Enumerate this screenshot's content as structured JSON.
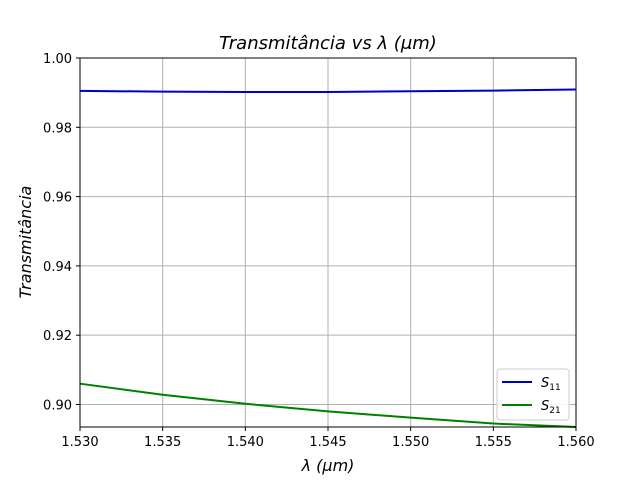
{
  "chart_data": {
    "type": "line",
    "title": "Transmitância vs λ (μm)",
    "xlabel": "λ (μm)",
    "ylabel": "Transmitância",
    "xlim": [
      1.53,
      1.56
    ],
    "ylim": [
      0.8935,
      1.0
    ],
    "xticks": [
      1.53,
      1.535,
      1.54,
      1.545,
      1.55,
      1.555,
      1.56
    ],
    "xtick_labels": [
      "1.530",
      "1.535",
      "1.540",
      "1.545",
      "1.550",
      "1.555",
      "1.560"
    ],
    "yticks": [
      0.9,
      0.92,
      0.94,
      0.96,
      0.98,
      1.0
    ],
    "ytick_labels": [
      "0.90",
      "0.92",
      "0.94",
      "0.96",
      "0.98",
      "1.00"
    ],
    "grid": true,
    "legend_position": "bottom-right",
    "series": [
      {
        "name": "S11",
        "name_main": "S",
        "name_sub": "11",
        "color": "#0000cc",
        "x": [
          1.53,
          1.535,
          1.54,
          1.545,
          1.55,
          1.555,
          1.56
        ],
        "y": [
          0.9905,
          0.9903,
          0.9902,
          0.9902,
          0.9904,
          0.9906,
          0.9909
        ]
      },
      {
        "name": "S21",
        "name_main": "S",
        "name_sub": "21",
        "color": "#008000",
        "x": [
          1.53,
          1.535,
          1.54,
          1.545,
          1.55,
          1.555,
          1.56
        ],
        "y": [
          0.906,
          0.9028,
          0.9002,
          0.898,
          0.8962,
          0.8945,
          0.8935
        ]
      }
    ]
  }
}
